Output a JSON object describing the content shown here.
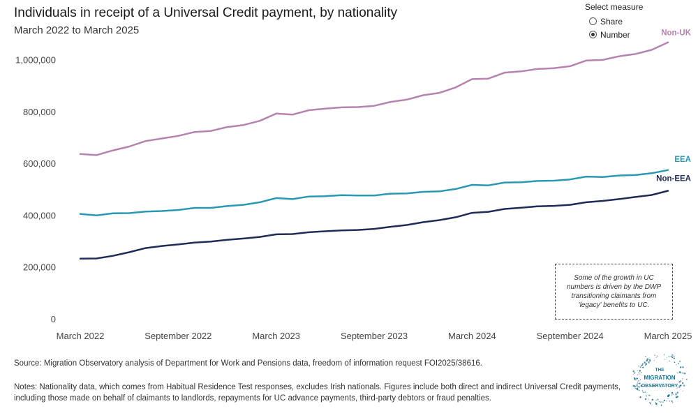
{
  "header": {
    "title": "Individuals in receipt of a Universal Credit payment, by nationality",
    "subtitle": "March 2022 to March 2025"
  },
  "measure_control": {
    "label": "Select measure",
    "options": [
      {
        "label": "Share",
        "checked": false
      },
      {
        "label": "Number",
        "checked": true
      }
    ]
  },
  "annotation": "Some of the growth in UC numbers is driven by the DWP transitioning claimants from 'legacy' benefits to UC.",
  "footer": {
    "source": "Source: Migration Observatory analysis of Department for Work and Pensions data, freedom of information request FOI2025/38616.",
    "notes": "Notes: Nationality data, which comes from Habitual Residence Test responses, excludes Irish nationals. Figures include both direct and indirect Universal Credit payments, including those made on behalf of claimants to landlords, repayments for UC advance payments, third-party debtors or fraud penalties."
  },
  "logo": {
    "line1": "THE",
    "line2": "MIGRATION",
    "line3": "OBSERVATORY"
  },
  "colors": {
    "non_uk": "#b583ae",
    "eea": "#2999b3",
    "non_eea": "#1e2c57",
    "logo": "#1b6e8f"
  },
  "chart_data": {
    "type": "line",
    "title": "Individuals in receipt of a Universal Credit payment, by nationality",
    "subtitle": "March 2022 to March 2025",
    "xlabel": "",
    "ylabel": "",
    "x": [
      "2022-03",
      "2022-04",
      "2022-05",
      "2022-06",
      "2022-07",
      "2022-08",
      "2022-09",
      "2022-10",
      "2022-11",
      "2022-12",
      "2023-01",
      "2023-02",
      "2023-03",
      "2023-04",
      "2023-05",
      "2023-06",
      "2023-07",
      "2023-08",
      "2023-09",
      "2023-10",
      "2023-11",
      "2023-12",
      "2024-01",
      "2024-02",
      "2024-03",
      "2024-04",
      "2024-05",
      "2024-06",
      "2024-07",
      "2024-08",
      "2024-09",
      "2024-10",
      "2024-11",
      "2024-12",
      "2025-01",
      "2025-02",
      "2025-03"
    ],
    "x_tick_labels": [
      "March 2022",
      "September 2022",
      "March 2023",
      "September 2023",
      "March 2024",
      "September 2024",
      "March 2025"
    ],
    "x_tick_values": [
      "2022-03",
      "2022-09",
      "2023-03",
      "2023-09",
      "2024-03",
      "2024-09",
      "2025-03"
    ],
    "y_ticks": [
      0,
      200000,
      400000,
      600000,
      800000,
      1000000
    ],
    "y_tick_labels": [
      "0",
      "200,000",
      "400,000",
      "600,000",
      "800,000",
      "1,000,000"
    ],
    "ylim": [
      0,
      1050000
    ],
    "grid": false,
    "series": [
      {
        "name": "Non-UK",
        "color": "#b583ae",
        "values": [
          636000,
          632000,
          650000,
          665000,
          686000,
          696000,
          706000,
          721000,
          725000,
          740000,
          748000,
          764000,
          792000,
          788000,
          805000,
          811000,
          816000,
          817000,
          822000,
          837000,
          846000,
          863000,
          872000,
          893000,
          925000,
          927000,
          950000,
          955000,
          964000,
          967000,
          975000,
          997000,
          999000,
          1013000,
          1022000,
          1038000,
          1067000
        ]
      },
      {
        "name": "EEA",
        "color": "#2999b3",
        "values": [
          405000,
          399000,
          407000,
          408000,
          414000,
          416000,
          420000,
          428000,
          428000,
          435000,
          440000,
          450000,
          466000,
          462000,
          472000,
          473000,
          477000,
          476000,
          476000,
          483000,
          484000,
          490000,
          492000,
          501000,
          517000,
          515000,
          526000,
          527000,
          532000,
          533000,
          538000,
          549000,
          547000,
          553000,
          555000,
          562000,
          574000
        ]
      },
      {
        "name": "Non-EEA",
        "color": "#1e2c57",
        "values": [
          232000,
          233000,
          243000,
          257000,
          273000,
          281000,
          287000,
          294000,
          298000,
          305000,
          310000,
          316000,
          326000,
          327000,
          334000,
          338000,
          341000,
          343000,
          347000,
          355000,
          362000,
          373000,
          381000,
          392000,
          409000,
          413000,
          424000,
          429000,
          434000,
          436000,
          440000,
          450000,
          455000,
          462000,
          470000,
          478000,
          494000
        ]
      }
    ],
    "legend": "direct-labels-at-line-ends"
  }
}
